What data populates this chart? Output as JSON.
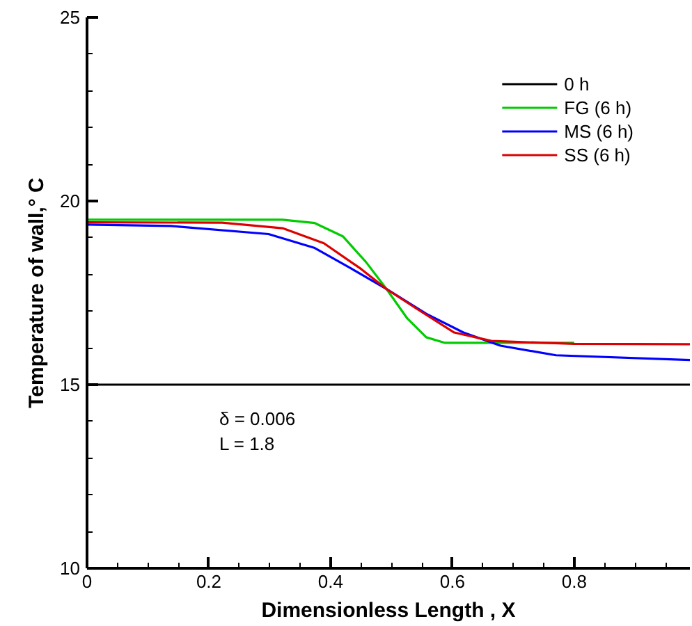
{
  "chart_data": {
    "type": "line",
    "xlabel": "Dimensionless Length , X",
    "ylabel": "Temperature of wall,° C",
    "xlim": [
      0,
      0.99
    ],
    "ylim": [
      10,
      25
    ],
    "xticks": [
      0,
      0.2,
      0.4,
      0.6,
      0.8
    ],
    "yticks": [
      10,
      15,
      20,
      25
    ],
    "legend": "top right",
    "grid": false,
    "line_style": "solid",
    "marker": "none",
    "annotations": [
      "δ = 0.006",
      "L = 1.8"
    ],
    "series": [
      {
        "name": "0 h",
        "color": "#000000",
        "x": [
          0,
          0.99
        ],
        "values": [
          15,
          15
        ]
      },
      {
        "name": "FG (6 h)",
        "color": "#00cc00",
        "x": [
          0,
          0.321,
          0.374,
          0.42,
          0.458,
          0.492,
          0.526,
          0.557,
          0.587,
          0.8
        ],
        "values": [
          19.49,
          19.49,
          19.4,
          19.04,
          18.34,
          17.6,
          16.8,
          16.29,
          16.14,
          16.14
        ]
      },
      {
        "name": "MS (6 h)",
        "color": "#0000ff",
        "x": [
          0,
          0.138,
          0.298,
          0.374,
          0.435,
          0.492,
          0.557,
          0.618,
          0.679,
          0.77,
          0.99
        ],
        "values": [
          19.36,
          19.32,
          19.1,
          18.72,
          18.15,
          17.6,
          16.93,
          16.42,
          16.06,
          15.8,
          15.67
        ]
      },
      {
        "name": "SS (6 h)",
        "color": "#dd0000",
        "x": [
          0,
          0.222,
          0.321,
          0.389,
          0.45,
          0.492,
          0.542,
          0.603,
          0.664,
          0.8,
          0.99
        ],
        "values": [
          19.42,
          19.41,
          19.26,
          18.85,
          18.15,
          17.6,
          17.06,
          16.42,
          16.19,
          16.11,
          16.1
        ]
      }
    ]
  }
}
